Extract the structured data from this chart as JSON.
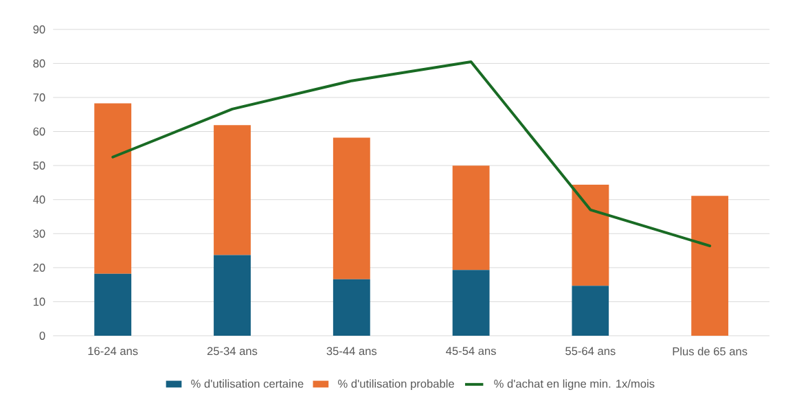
{
  "chart_data": {
    "type": "bar",
    "stacked": true,
    "categories": [
      "16-24 ans",
      "25-34 ans",
      "35-44 ans",
      "45-54 ans",
      "55-64 ans",
      "Plus de 65 ans"
    ],
    "series": [
      {
        "name": "% d'utilisation certaine",
        "color": "#156082",
        "values": [
          18.2,
          23.7,
          16.6,
          19.3,
          14.7,
          0
        ]
      },
      {
        "name": "% d'utilisation probable",
        "color": "#e97132",
        "values": [
          50.1,
          38.2,
          41.6,
          30.7,
          29.7,
          41.1
        ]
      },
      {
        "name": "% d'achat en ligne min. 1x/mois",
        "type": "line",
        "color": "#196b24",
        "values": [
          52.5,
          66.6,
          74.9,
          80.5,
          37.0,
          26.4
        ]
      }
    ],
    "ylim": [
      0,
      90
    ],
    "yticks": [
      0,
      10,
      20,
      30,
      40,
      50,
      60,
      70,
      80,
      90
    ],
    "grid": "y",
    "legend": "bottom",
    "marker": "none",
    "line_style": "solid"
  }
}
